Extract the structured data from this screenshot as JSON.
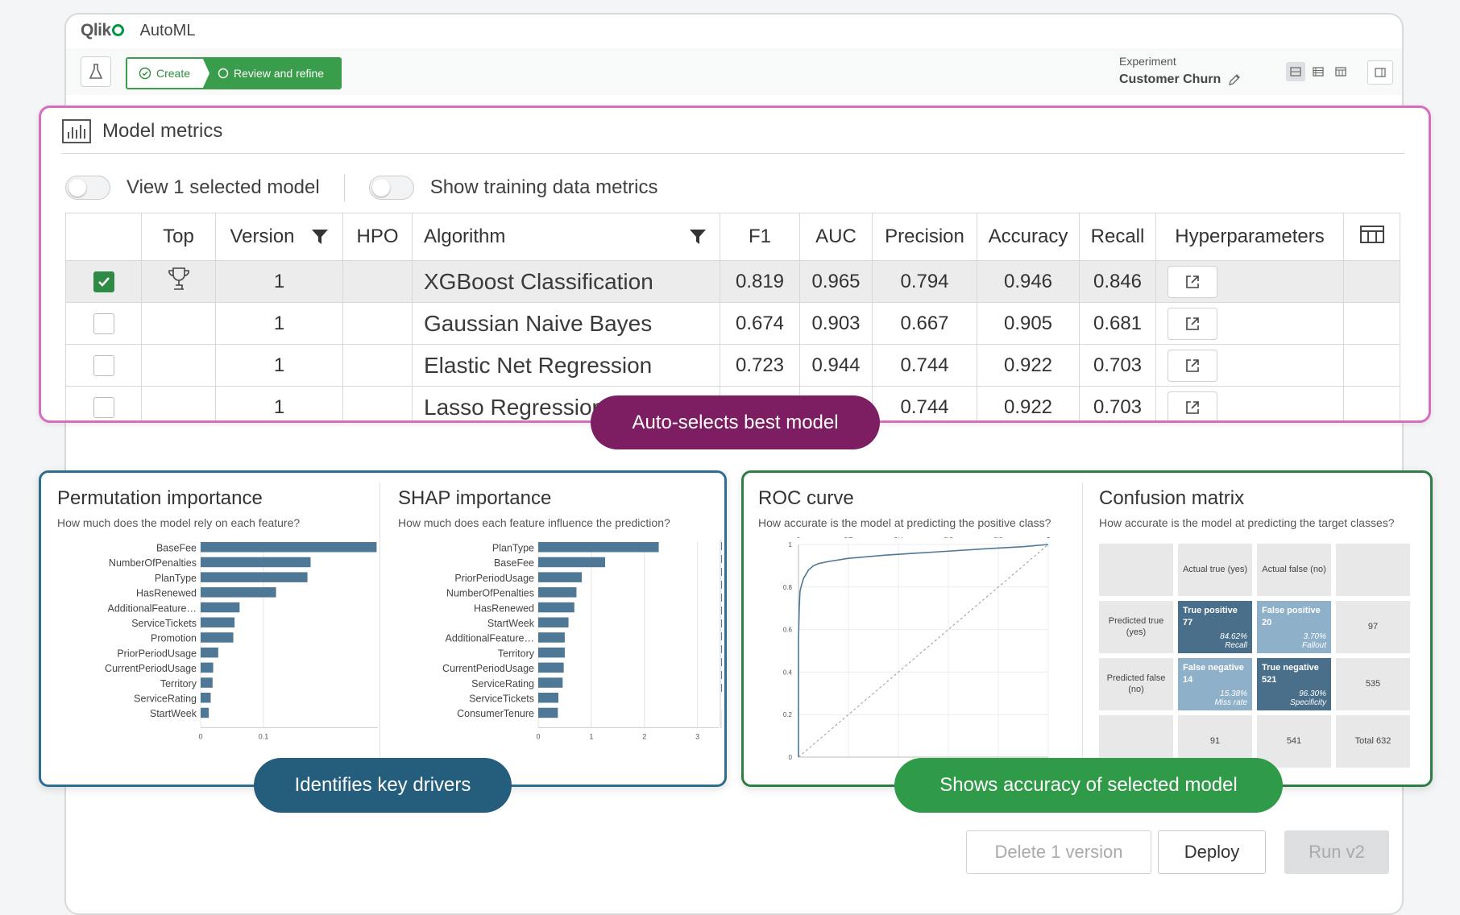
{
  "app": {
    "brand": "Qlik",
    "name": "AutoML"
  },
  "steps": {
    "create": "Create",
    "review": "Review and refine"
  },
  "experiment": {
    "label": "Experiment",
    "name": "Customer Churn"
  },
  "model_metrics": {
    "title": "Model metrics",
    "toggle_selected": "View 1 selected model",
    "toggle_training": "Show training data metrics",
    "columns": [
      "Top",
      "Version",
      "HPO",
      "Algorithm",
      "F1",
      "AUC",
      "Precision",
      "Accuracy",
      "Recall",
      "Hyperparameters"
    ],
    "rows": [
      {
        "selected": true,
        "top": true,
        "version": "1",
        "hpo": "",
        "algorithm": "XGBoost Classification",
        "f1": "0.819",
        "auc": "0.965",
        "precision": "0.794",
        "accuracy": "0.946",
        "recall": "0.846"
      },
      {
        "selected": false,
        "top": false,
        "version": "1",
        "hpo": "",
        "algorithm": "Gaussian Naive Bayes",
        "f1": "0.674",
        "auc": "0.903",
        "precision": "0.667",
        "accuracy": "0.905",
        "recall": "0.681"
      },
      {
        "selected": false,
        "top": false,
        "version": "1",
        "hpo": "",
        "algorithm": "Elastic Net Regression",
        "f1": "0.723",
        "auc": "0.944",
        "precision": "0.744",
        "accuracy": "0.922",
        "recall": "0.703"
      },
      {
        "selected": false,
        "top": false,
        "version": "1",
        "hpo": "",
        "algorithm": "Lasso Regression",
        "f1": "",
        "auc": "",
        "precision": "0.744",
        "accuracy": "0.922",
        "recall": "0.703"
      }
    ]
  },
  "callouts": {
    "best_model": "Auto-selects best model",
    "key_drivers": "Identifies key drivers",
    "accuracy": "Shows accuracy of selected model"
  },
  "permutation": {
    "title": "Permutation importance",
    "subtitle": "How much does the model rely on each feature?"
  },
  "shap": {
    "title": "SHAP importance",
    "subtitle": "How much does each feature influence the prediction?"
  },
  "roc": {
    "title": "ROC curve",
    "subtitle": "How accurate is the model at predicting the positive class?"
  },
  "confusion": {
    "title": "Confusion matrix",
    "subtitle": "How accurate is the model at predicting the target classes?",
    "actual_true": "Actual true (yes)",
    "actual_false": "Actual false (no)",
    "pred_true": "Predicted true (yes)",
    "pred_false": "Predicted false (no)",
    "tp": {
      "label": "True positive",
      "count": "77",
      "pct": "84.62%",
      "metric": "Recall"
    },
    "fp": {
      "label": "False positive",
      "count": "20",
      "pct": "3.70%",
      "metric": "Fallout"
    },
    "fn": {
      "label": "False negative",
      "count": "14",
      "pct": "15.38%",
      "metric": "Miss rate"
    },
    "tn": {
      "label": "True negative",
      "count": "521",
      "pct": "96.30%",
      "metric": "Specificity"
    },
    "row_total_true": "97",
    "row_total_false": "535",
    "col_total_true": "91",
    "col_total_false": "541",
    "total": "Total 632",
    "colors": {
      "dark": "#4a6f8a",
      "light": "#8fb0c9"
    }
  },
  "buttons": {
    "delete": "Delete 1 version",
    "deploy": "Deploy",
    "run": "Run v2"
  },
  "chart_data": [
    {
      "type": "bar",
      "orientation": "horizontal",
      "categories": [
        "BaseFee",
        "NumberOfPenalties",
        "PlanType",
        "HasRenewed",
        "AdditionalFeature…",
        "ServiceTickets",
        "Promotion",
        "PriorPeriodUsage",
        "CurrentPeriodUsage",
        "Territory",
        "ServiceRating",
        "StartWeek"
      ],
      "values": [
        0.28,
        0.175,
        0.17,
        0.12,
        0.062,
        0.054,
        0.052,
        0.028,
        0.02,
        0.019,
        0.016,
        0.013
      ],
      "xticks": [
        "0",
        "0.1"
      ],
      "xlim": [
        0,
        0.3
      ],
      "color": "#4f7897"
    },
    {
      "type": "bar",
      "orientation": "horizontal",
      "categories": [
        "PlanType",
        "BaseFee",
        "PriorPeriodUsage",
        "NumberOfPenalties",
        "HasRenewed",
        "StartWeek",
        "AdditionalFeature…",
        "Territory",
        "CurrentPeriodUsage",
        "ServiceRating",
        "ServiceTickets",
        "ConsumerTenure"
      ],
      "values": [
        2.27,
        1.26,
        0.82,
        0.72,
        0.68,
        0.57,
        0.5,
        0.5,
        0.48,
        0.46,
        0.38,
        0.37
      ],
      "xticks": [
        "0",
        "1",
        "2",
        "3"
      ],
      "xlim": [
        0,
        3.4
      ],
      "color": "#4f7897"
    },
    {
      "type": "line",
      "xticks": [
        "0",
        "0.2",
        "0.4",
        "0.6",
        "0.8",
        "1"
      ],
      "yticks": [
        "0",
        "0.2",
        "0.4",
        "0.6",
        "0.8",
        "1"
      ],
      "xlim": [
        0,
        1
      ],
      "ylim": [
        0,
        1
      ],
      "series": [
        {
          "x": [
            0,
            0,
            0.003,
            0.006,
            0.01,
            0.015,
            0.02,
            0.03,
            0.04,
            0.06,
            0.08,
            0.12,
            0.2,
            0.35,
            0.55,
            0.75,
            0.9,
            1.0
          ],
          "y": [
            0,
            0.55,
            0.7,
            0.78,
            0.8,
            0.82,
            0.84,
            0.86,
            0.88,
            0.9,
            0.91,
            0.92,
            0.935,
            0.95,
            0.965,
            0.98,
            0.99,
            1.0
          ]
        },
        {
          "x": [
            0,
            1
          ],
          "y": [
            0,
            1
          ]
        }
      ],
      "colors": [
        "#4f7897",
        "#999999"
      ]
    }
  ]
}
